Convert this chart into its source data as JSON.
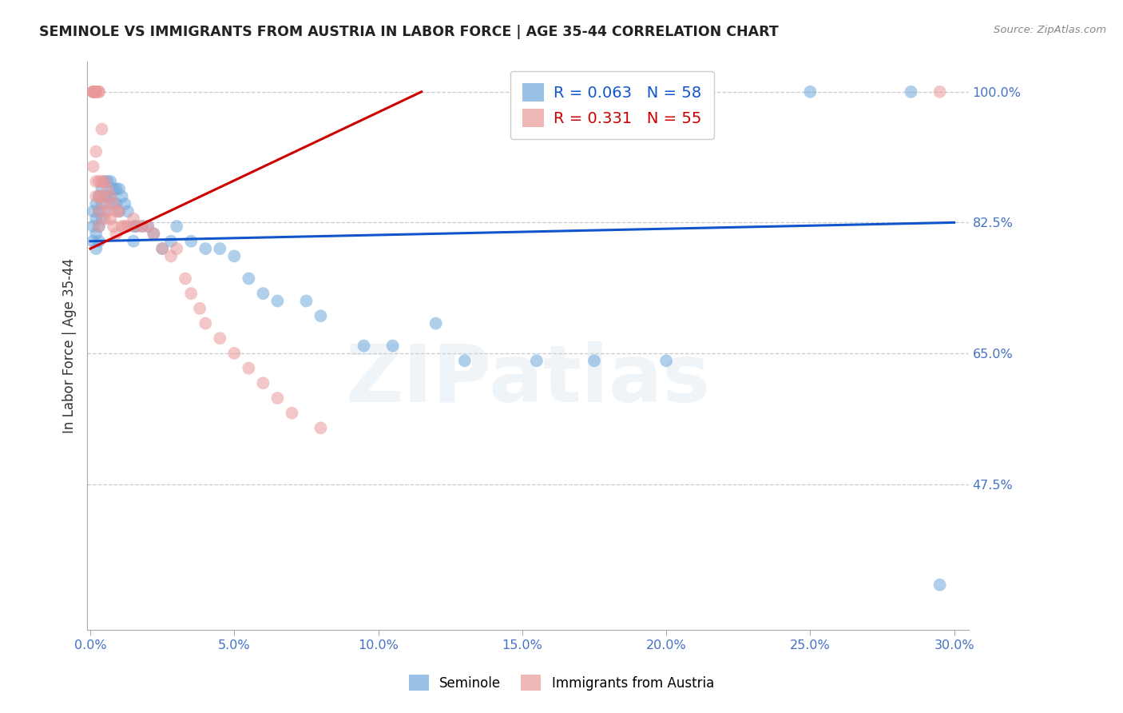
{
  "title": "SEMINOLE VS IMMIGRANTS FROM AUSTRIA IN LABOR FORCE | AGE 35-44 CORRELATION CHART",
  "source": "Source: ZipAtlas.com",
  "ylabel": "In Labor Force | Age 35-44",
  "xlim": [
    -0.001,
    0.305
  ],
  "ylim": [
    0.28,
    1.04
  ],
  "xticks": [
    0.0,
    0.05,
    0.1,
    0.15,
    0.2,
    0.25,
    0.3
  ],
  "xticklabels": [
    "0.0%",
    "5.0%",
    "10.0%",
    "15.0%",
    "20.0%",
    "25.0%",
    "30.0%"
  ],
  "ytick_positions": [
    0.475,
    0.65,
    0.825,
    1.0
  ],
  "yticklabels": [
    "47.5%",
    "65.0%",
    "82.5%",
    "100.0%"
  ],
  "blue_color": "#6fa8dc",
  "pink_color": "#ea9999",
  "blue_line_color": "#1155cc",
  "pink_line_color": "#cc0000",
  "blue_R": "0.063",
  "blue_N": "58",
  "pink_R": "0.331",
  "pink_N": "55",
  "blue_line_x0": 0.0,
  "blue_line_x1": 0.3,
  "blue_line_y0": 0.8,
  "blue_line_y1": 0.825,
  "pink_line_x0": 0.0,
  "pink_line_x1": 0.115,
  "pink_line_y0": 0.79,
  "pink_line_y1": 1.0,
  "blue_scatter_x": [
    0.001,
    0.001,
    0.001,
    0.002,
    0.002,
    0.002,
    0.002,
    0.003,
    0.003,
    0.003,
    0.003,
    0.004,
    0.004,
    0.004,
    0.005,
    0.005,
    0.005,
    0.006,
    0.006,
    0.007,
    0.007,
    0.008,
    0.008,
    0.009,
    0.009,
    0.01,
    0.01,
    0.011,
    0.012,
    0.013,
    0.015,
    0.015,
    0.016,
    0.018,
    0.02,
    0.022,
    0.025,
    0.028,
    0.03,
    0.035,
    0.04,
    0.045,
    0.05,
    0.055,
    0.06,
    0.065,
    0.075,
    0.08,
    0.095,
    0.105,
    0.12,
    0.13,
    0.155,
    0.175,
    0.2,
    0.25,
    0.285,
    0.295
  ],
  "blue_scatter_y": [
    0.84,
    0.82,
    0.8,
    0.85,
    0.83,
    0.81,
    0.79,
    0.86,
    0.84,
    0.82,
    0.8,
    0.87,
    0.85,
    0.83,
    0.88,
    0.86,
    0.84,
    0.88,
    0.86,
    0.88,
    0.86,
    0.87,
    0.85,
    0.87,
    0.85,
    0.87,
    0.84,
    0.86,
    0.85,
    0.84,
    0.82,
    0.8,
    0.82,
    0.82,
    0.82,
    0.81,
    0.79,
    0.8,
    0.82,
    0.8,
    0.79,
    0.79,
    0.78,
    0.75,
    0.73,
    0.72,
    0.72,
    0.7,
    0.66,
    0.66,
    0.69,
    0.64,
    0.64,
    0.64,
    0.64,
    1.0,
    1.0,
    0.34
  ],
  "pink_scatter_x": [
    0.001,
    0.001,
    0.001,
    0.001,
    0.001,
    0.002,
    0.002,
    0.002,
    0.002,
    0.002,
    0.002,
    0.003,
    0.003,
    0.003,
    0.003,
    0.003,
    0.003,
    0.004,
    0.004,
    0.004,
    0.005,
    0.005,
    0.005,
    0.006,
    0.006,
    0.007,
    0.007,
    0.008,
    0.008,
    0.009,
    0.009,
    0.01,
    0.011,
    0.012,
    0.013,
    0.015,
    0.016,
    0.018,
    0.02,
    0.022,
    0.025,
    0.028,
    0.03,
    0.033,
    0.035,
    0.038,
    0.04,
    0.045,
    0.05,
    0.055,
    0.06,
    0.065,
    0.07,
    0.08,
    0.295
  ],
  "pink_scatter_y": [
    1.0,
    1.0,
    1.0,
    1.0,
    0.9,
    1.0,
    1.0,
    1.0,
    0.92,
    0.88,
    0.86,
    1.0,
    1.0,
    0.88,
    0.86,
    0.84,
    0.82,
    0.95,
    0.88,
    0.86,
    0.88,
    0.85,
    0.83,
    0.87,
    0.84,
    0.86,
    0.83,
    0.85,
    0.82,
    0.84,
    0.81,
    0.84,
    0.82,
    0.82,
    0.82,
    0.83,
    0.82,
    0.82,
    0.82,
    0.81,
    0.79,
    0.78,
    0.79,
    0.75,
    0.73,
    0.71,
    0.69,
    0.67,
    0.65,
    0.63,
    0.61,
    0.59,
    0.57,
    0.55,
    1.0
  ],
  "watermark": "ZIPatlas",
  "legend_blue_label": "Seminole",
  "legend_pink_label": "Immigrants from Austria",
  "background_color": "#ffffff",
  "grid_color": "#cccccc",
  "title_color": "#222222",
  "tick_color_blue": "#4472c4",
  "source_color": "#888888"
}
